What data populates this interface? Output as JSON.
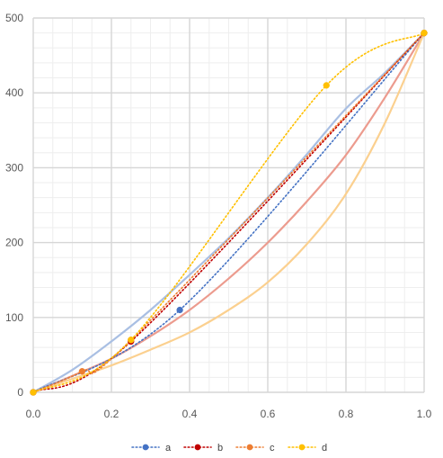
{
  "chart_data": {
    "type": "scatter",
    "title": "",
    "xlabel": "",
    "ylabel": "",
    "xlim": [
      0,
      1
    ],
    "ylim": [
      0,
      500
    ],
    "x_ticks": [
      "0.0",
      "0.2",
      "0.4",
      "0.6",
      "0.8",
      "1.0"
    ],
    "y_ticks": [
      "0",
      "100",
      "200",
      "300",
      "400",
      "500"
    ],
    "grid": true,
    "legend_position": "bottom",
    "series": [
      {
        "name": "a",
        "color": "#4472c4",
        "line_style": "dotted",
        "points": [
          [
            0.0,
            0
          ],
          [
            0.375,
            110
          ],
          [
            1.0,
            480
          ]
        ],
        "curve_color": "#a9bfe3",
        "curve": [
          [
            0,
            0
          ],
          [
            0.1,
            30
          ],
          [
            0.2,
            68
          ],
          [
            0.3,
            110
          ],
          [
            0.4,
            157
          ],
          [
            0.5,
            206
          ],
          [
            0.6,
            260
          ],
          [
            0.7,
            318
          ],
          [
            0.8,
            379
          ],
          [
            0.9,
            427
          ],
          [
            1.0,
            480
          ]
        ]
      },
      {
        "name": "b",
        "color": "#c00000",
        "line_style": "dotted",
        "points": [
          [
            0.0,
            0
          ],
          [
            0.25,
            68
          ],
          [
            1.0,
            480
          ]
        ],
        "curve_color": "#ec9b8e",
        "curve": [
          [
            0,
            0
          ],
          [
            0.1,
            22
          ],
          [
            0.2,
            45
          ],
          [
            0.3,
            75
          ],
          [
            0.4,
            110
          ],
          [
            0.5,
            152
          ],
          [
            0.6,
            200
          ],
          [
            0.7,
            255
          ],
          [
            0.8,
            317
          ],
          [
            0.9,
            394
          ],
          [
            1.0,
            480
          ]
        ]
      },
      {
        "name": "c",
        "color": "#ed7d31",
        "line_style": "dotted",
        "points": [
          [
            0.0,
            0
          ],
          [
            0.125,
            28
          ],
          [
            0.25,
            70
          ],
          [
            1.0,
            480
          ]
        ],
        "curve_color": "#fbd08f",
        "curve": [
          [
            0,
            0
          ],
          [
            0.1,
            18
          ],
          [
            0.2,
            36
          ],
          [
            0.3,
            57
          ],
          [
            0.4,
            80
          ],
          [
            0.5,
            110
          ],
          [
            0.6,
            147
          ],
          [
            0.7,
            198
          ],
          [
            0.8,
            265
          ],
          [
            0.9,
            360
          ],
          [
            1.0,
            480
          ]
        ]
      },
      {
        "name": "d",
        "color": "#ffc000",
        "line_style": "dotted",
        "points": [
          [
            0.0,
            0
          ],
          [
            0.25,
            70
          ],
          [
            0.75,
            410
          ],
          [
            1.0,
            480
          ]
        ]
      }
    ]
  }
}
